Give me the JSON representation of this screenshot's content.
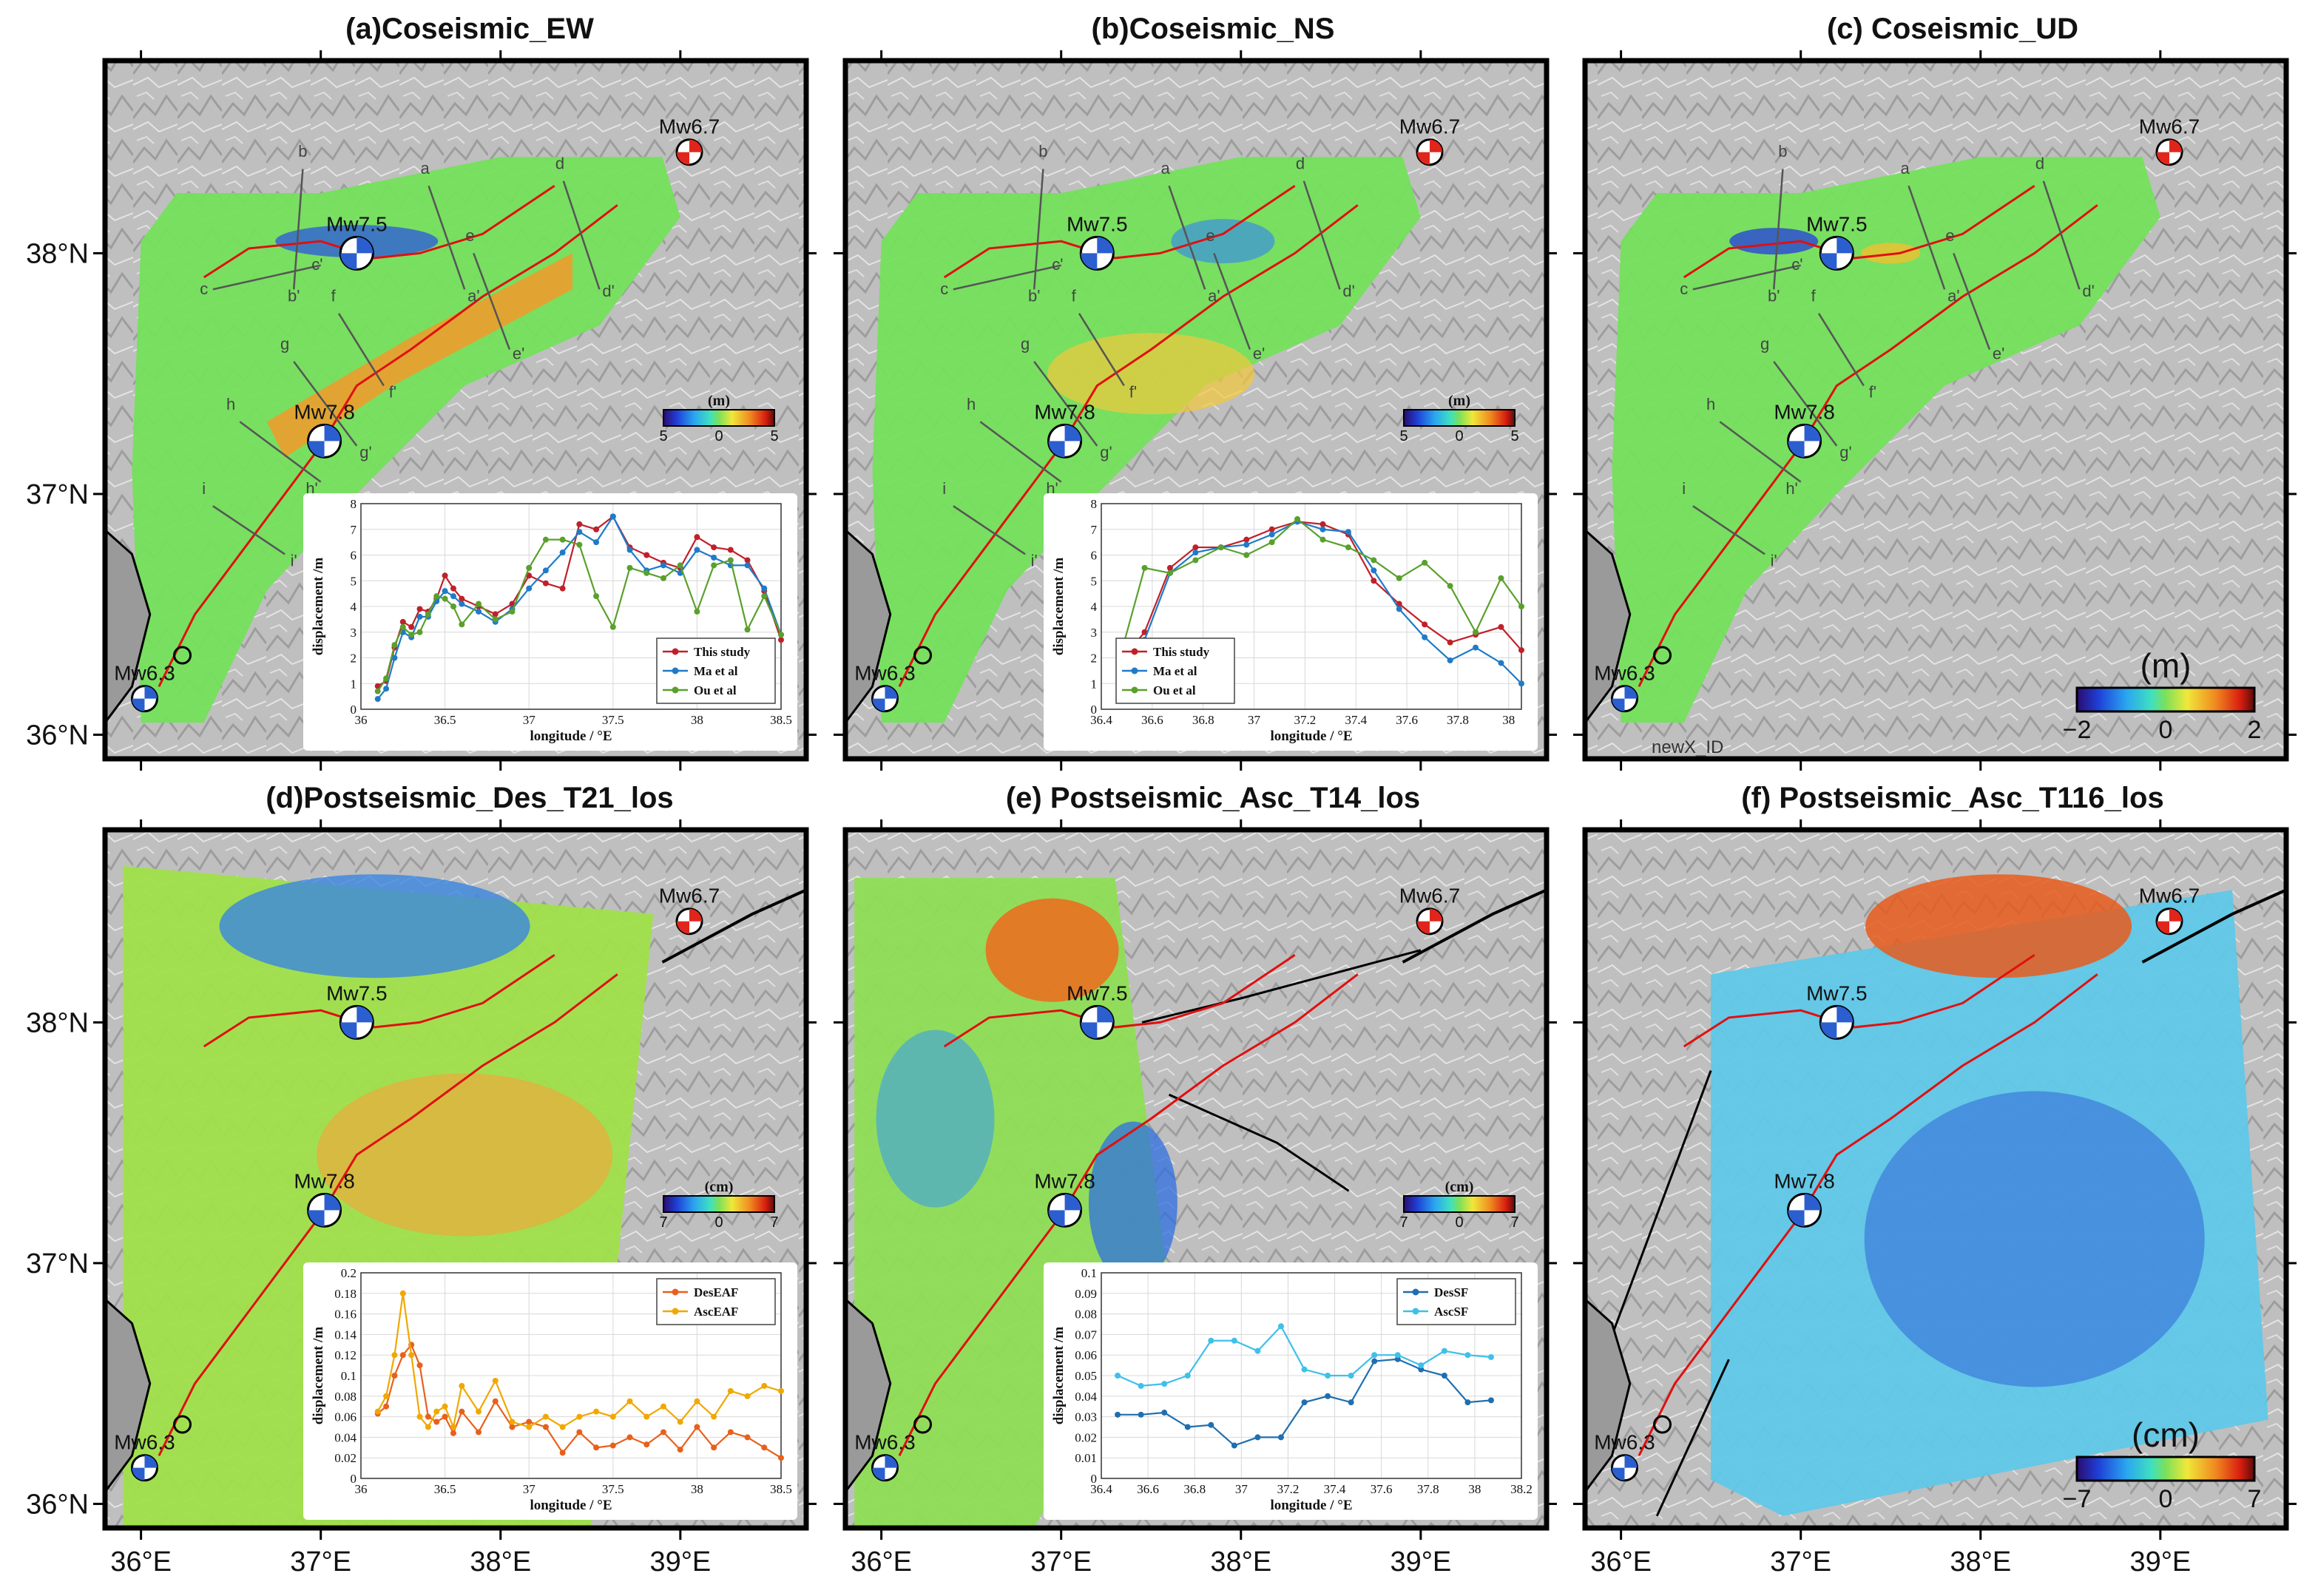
{
  "figure": {
    "x_ticks": [
      "36°E",
      "37°E",
      "38°E",
      "39°E"
    ],
    "y_ticks": [
      "38°N",
      "37°N",
      "36°N"
    ],
    "lon_range": [
      35.8,
      39.7
    ],
    "lat_range": [
      35.9,
      38.8
    ],
    "colors": {
      "rupture": "#e01010",
      "fault": "#000000",
      "hillshade": "#bdbdbd",
      "beachball_blue": "#2b5fcf",
      "beachball_red": "#e0261c"
    }
  },
  "earthquakes": [
    {
      "label": "Mw7.5",
      "lon": 37.2,
      "lat": 38.0,
      "color": "blue"
    },
    {
      "label": "Mw7.8",
      "lon": 37.02,
      "lat": 37.22,
      "color": "blue"
    },
    {
      "label": "Mw6.7",
      "lon": 39.05,
      "lat": 38.42,
      "color": "red"
    },
    {
      "label": "Mw6.3",
      "lon": 36.02,
      "lat": 36.15,
      "color": "blue"
    }
  ],
  "profiles": [
    "a",
    "a'",
    "b",
    "b'",
    "c",
    "c'",
    "d",
    "d'",
    "e",
    "e'",
    "f",
    "f'",
    "g",
    "g'",
    "h",
    "h'",
    "i",
    "i'"
  ],
  "panels": [
    {
      "id": "a",
      "title": "(a)Coseismic_EW",
      "colorbar": {
        "unit": "(m)",
        "ticks": [
          "5",
          "0",
          "5"
        ],
        "style": "small"
      },
      "show_profiles": true,
      "chart_data": {
        "type": "line",
        "x_ticks": [
          "36",
          "36.5",
          "37",
          "37.5",
          "38",
          "38.5"
        ],
        "y_ticks": [
          "0",
          "1",
          "2",
          "3",
          "4",
          "5",
          "6",
          "7",
          "8"
        ],
        "xlim": [
          36,
          38.5
        ],
        "ylim": [
          0,
          8
        ],
        "xlabel": "longitude / °E",
        "ylabel": "displacement /m",
        "legend": "bottom-right",
        "series": [
          {
            "name": "This study",
            "color": "#c0202a",
            "x": [
              36.1,
              36.15,
              36.2,
              36.25,
              36.3,
              36.35,
              36.4,
              36.45,
              36.5,
              36.55,
              36.6,
              36.7,
              36.8,
              36.9,
              37.0,
              37.1,
              37.2,
              37.3,
              37.4,
              37.5,
              37.6,
              37.7,
              37.8,
              37.9,
              38.0,
              38.1,
              38.2,
              38.3,
              38.4,
              38.5
            ],
            "y": [
              0.9,
              1.1,
              2.4,
              3.4,
              3.2,
              3.9,
              3.8,
              4.3,
              5.2,
              4.7,
              4.3,
              4.0,
              3.7,
              4.1,
              5.2,
              4.9,
              4.7,
              7.2,
              7.0,
              7.5,
              6.3,
              6.0,
              5.7,
              5.5,
              6.7,
              6.3,
              6.2,
              5.8,
              4.6,
              2.7
            ]
          },
          {
            "name": "Ma et al",
            "color": "#1f7bc8",
            "x": [
              36.1,
              36.15,
              36.2,
              36.25,
              36.3,
              36.35,
              36.4,
              36.45,
              36.5,
              36.55,
              36.6,
              36.7,
              36.8,
              36.9,
              37.0,
              37.1,
              37.2,
              37.3,
              37.4,
              37.5,
              37.6,
              37.7,
              37.8,
              37.9,
              38.0,
              38.1,
              38.2,
              38.3,
              38.4,
              38.5
            ],
            "y": [
              0.4,
              0.8,
              2.0,
              3.0,
              2.8,
              3.6,
              3.6,
              4.2,
              4.6,
              4.4,
              4.1,
              3.8,
              3.4,
              3.9,
              4.7,
              5.4,
              6.1,
              6.9,
              6.5,
              7.5,
              6.2,
              5.4,
              5.6,
              5.3,
              6.2,
              5.9,
              5.6,
              5.6,
              4.7,
              2.9
            ]
          },
          {
            "name": "Ou et al",
            "color": "#5aa02c",
            "x": [
              36.1,
              36.15,
              36.2,
              36.25,
              36.3,
              36.35,
              36.4,
              36.45,
              36.5,
              36.55,
              36.6,
              36.7,
              36.8,
              36.9,
              37.0,
              37.1,
              37.2,
              37.3,
              37.4,
              37.5,
              37.6,
              37.7,
              37.8,
              37.9,
              38.0,
              38.1,
              38.2,
              38.3,
              38.4,
              38.5
            ],
            "y": [
              0.7,
              1.2,
              2.5,
              3.2,
              2.9,
              3.0,
              3.7,
              4.4,
              4.3,
              4.0,
              3.3,
              4.1,
              3.5,
              3.8,
              5.5,
              6.6,
              6.6,
              6.4,
              4.4,
              3.2,
              5.5,
              5.3,
              5.1,
              5.6,
              3.8,
              5.6,
              5.8,
              3.1,
              4.4,
              2.9
            ]
          }
        ]
      }
    },
    {
      "id": "b",
      "title": "(b)Coseismic_NS",
      "colorbar": {
        "unit": "(m)",
        "ticks": [
          "5",
          "0",
          "5"
        ],
        "style": "small"
      },
      "show_profiles": true,
      "chart_data": {
        "type": "line",
        "x_ticks": [
          "36.4",
          "36.6",
          "36.8",
          "37",
          "37.2",
          "37.4",
          "37.6",
          "37.8",
          "38"
        ],
        "y_ticks": [
          "0",
          "1",
          "2",
          "3",
          "4",
          "5",
          "6",
          "7",
          "8"
        ],
        "xlim": [
          36.4,
          38.05
        ],
        "ylim": [
          0,
          8
        ],
        "xlabel": "longitude / °E",
        "ylabel": "displacement /m",
        "legend": "bottom-left",
        "series": [
          {
            "name": "This study",
            "color": "#c0202a",
            "x": [
              36.47,
              36.57,
              36.67,
              36.77,
              36.87,
              36.97,
              37.07,
              37.17,
              37.27,
              37.37,
              37.47,
              37.57,
              37.67,
              37.77,
              37.87,
              37.97,
              38.05
            ],
            "y": [
              1.8,
              3.0,
              5.5,
              6.3,
              6.3,
              6.6,
              7.0,
              7.3,
              7.2,
              6.8,
              5.0,
              4.1,
              3.3,
              2.6,
              2.9,
              3.2,
              2.3
            ]
          },
          {
            "name": "Ma et al",
            "color": "#1f7bc8",
            "x": [
              36.47,
              36.57,
              36.67,
              36.77,
              36.87,
              36.97,
              37.07,
              37.17,
              37.27,
              37.37,
              37.47,
              37.57,
              37.67,
              37.77,
              37.87,
              37.97,
              38.05
            ],
            "y": [
              1.4,
              2.7,
              5.3,
              6.1,
              6.3,
              6.4,
              6.8,
              7.3,
              7.0,
              6.9,
              5.4,
              3.9,
              2.8,
              1.9,
              2.4,
              1.8,
              1.0
            ]
          },
          {
            "name": "Ou et al",
            "color": "#5aa02c",
            "x": [
              36.47,
              36.57,
              36.67,
              36.77,
              36.87,
              36.97,
              37.07,
              37.17,
              37.27,
              37.37,
              37.47,
              37.57,
              37.67,
              37.77,
              37.87,
              37.97,
              38.05
            ],
            "y": [
              1.9,
              5.5,
              5.3,
              5.8,
              6.3,
              6.0,
              6.5,
              7.4,
              6.6,
              6.3,
              5.8,
              5.1,
              5.7,
              4.8,
              3.0,
              5.1,
              4.0
            ]
          }
        ]
      }
    },
    {
      "id": "c",
      "title": "(c) Coseismic_UD",
      "colorbar": {
        "unit": "(m)",
        "ticks": [
          "−2",
          "0",
          "2"
        ],
        "style": "big"
      },
      "show_profiles": true,
      "extra_text": "newX_ID",
      "chart_data": null
    },
    {
      "id": "d",
      "title": "(d)Postseismic_Des_T21_los",
      "colorbar": {
        "unit": "(cm)",
        "ticks": [
          "7",
          "0",
          "7"
        ],
        "style": "small"
      },
      "show_profiles": false,
      "chart_data": {
        "type": "line",
        "x_ticks": [
          "36",
          "36.5",
          "37",
          "37.5",
          "38",
          "38.5"
        ],
        "y_ticks": [
          "0",
          "0.02",
          "0.04",
          "0.06",
          "0.08",
          "0.1",
          "0.12",
          "0.14",
          "0.16",
          "0.18",
          "0.2"
        ],
        "xlim": [
          36,
          38.5
        ],
        "ylim": [
          0,
          0.2
        ],
        "xlabel": "longitude / °E",
        "ylabel": "displacement /m",
        "legend": "top-right",
        "series": [
          {
            "name": "DesEAF",
            "color": "#e8601c",
            "x": [
              36.1,
              36.15,
              36.2,
              36.25,
              36.3,
              36.35,
              36.4,
              36.45,
              36.5,
              36.55,
              36.6,
              36.7,
              36.8,
              36.9,
              37.0,
              37.1,
              37.2,
              37.3,
              37.4,
              37.5,
              37.6,
              37.7,
              37.8,
              37.9,
              38.0,
              38.1,
              38.2,
              38.3,
              38.4,
              38.5
            ],
            "y": [
              0.063,
              0.07,
              0.1,
              0.12,
              0.13,
              0.11,
              0.06,
              0.055,
              0.06,
              0.044,
              0.065,
              0.045,
              0.075,
              0.05,
              0.055,
              0.05,
              0.025,
              0.045,
              0.03,
              0.032,
              0.04,
              0.033,
              0.045,
              0.028,
              0.05,
              0.03,
              0.045,
              0.04,
              0.03,
              0.02
            ]
          },
          {
            "name": "AscEAF",
            "color": "#f0a800",
            "x": [
              36.1,
              36.15,
              36.2,
              36.25,
              36.3,
              36.35,
              36.4,
              36.45,
              36.5,
              36.55,
              36.6,
              36.7,
              36.8,
              36.9,
              37.0,
              37.1,
              37.2,
              37.3,
              37.4,
              37.5,
              37.6,
              37.7,
              37.8,
              37.9,
              38.0,
              38.1,
              38.2,
              38.3,
              38.4,
              38.5
            ],
            "y": [
              0.065,
              0.08,
              0.12,
              0.18,
              0.12,
              0.06,
              0.05,
              0.065,
              0.07,
              0.05,
              0.09,
              0.065,
              0.095,
              0.055,
              0.05,
              0.06,
              0.05,
              0.06,
              0.065,
              0.06,
              0.075,
              0.06,
              0.07,
              0.055,
              0.075,
              0.06,
              0.085,
              0.08,
              0.09,
              0.085
            ]
          }
        ]
      }
    },
    {
      "id": "e",
      "title": "(e) Postseismic_Asc_T14_los",
      "colorbar": {
        "unit": "(cm)",
        "ticks": [
          "7",
          "0",
          "7"
        ],
        "style": "small"
      },
      "show_profiles": false,
      "chart_data": {
        "type": "line",
        "x_ticks": [
          "36.4",
          "36.6",
          "36.8",
          "37",
          "37.2",
          "37.4",
          "37.6",
          "37.8",
          "38",
          "38.2"
        ],
        "y_ticks": [
          "0",
          "0.01",
          "0.02",
          "0.03",
          "0.04",
          "0.05",
          "0.06",
          "0.07",
          "0.08",
          "0.09",
          "0.1"
        ],
        "xlim": [
          36.4,
          38.2
        ],
        "ylim": [
          0,
          0.1
        ],
        "xlabel": "longitude / °E",
        "ylabel": "displacement /m",
        "legend": "top-right",
        "series": [
          {
            "name": "DesSF",
            "color": "#1f6fb0",
            "x": [
              36.47,
              36.57,
              36.67,
              36.77,
              36.87,
              36.97,
              37.07,
              37.17,
              37.27,
              37.37,
              37.47,
              37.57,
              37.67,
              37.77,
              37.87,
              37.97,
              38.07
            ],
            "y": [
              0.031,
              0.031,
              0.032,
              0.025,
              0.026,
              0.016,
              0.02,
              0.02,
              0.037,
              0.04,
              0.037,
              0.057,
              0.058,
              0.053,
              0.05,
              0.037,
              0.038
            ]
          },
          {
            "name": "AscSF",
            "color": "#3ec0ea",
            "x": [
              36.47,
              36.57,
              36.67,
              36.77,
              36.87,
              36.97,
              37.07,
              37.17,
              37.27,
              37.37,
              37.47,
              37.57,
              37.67,
              37.77,
              37.87,
              37.97,
              38.07
            ],
            "y": [
              0.05,
              0.045,
              0.046,
              0.05,
              0.067,
              0.067,
              0.062,
              0.074,
              0.053,
              0.05,
              0.05,
              0.06,
              0.06,
              0.055,
              0.062,
              0.06,
              0.059
            ]
          }
        ]
      }
    },
    {
      "id": "f",
      "title": "(f) Postseismic_Asc_T116_los",
      "colorbar": {
        "unit": "(cm)",
        "ticks": [
          "−7",
          "0",
          "7"
        ],
        "style": "big"
      },
      "show_profiles": false,
      "chart_data": null
    }
  ]
}
